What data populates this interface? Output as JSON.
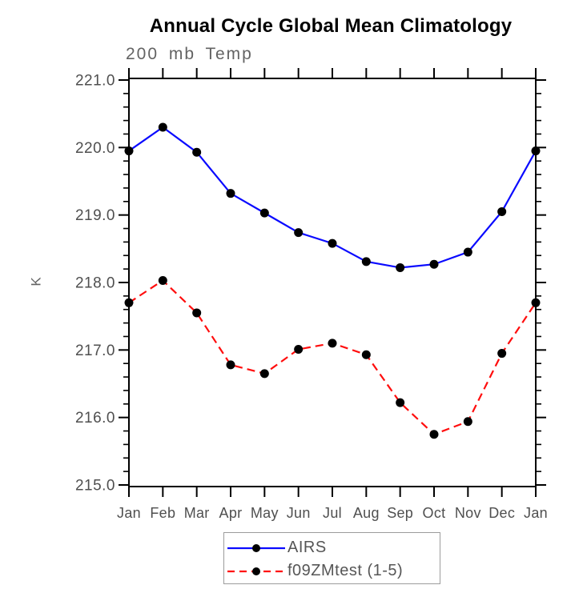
{
  "chart_data": {
    "type": "line",
    "title": "Annual Cycle Global Mean Climatology",
    "subtitle": "200 mb Temp",
    "ylabel": "K",
    "categories": [
      "Jan",
      "Feb",
      "Mar",
      "Apr",
      "May",
      "Jun",
      "Jul",
      "Aug",
      "Sep",
      "Oct",
      "Nov",
      "Dec",
      "Jan"
    ],
    "ylim": [
      215.0,
      221.0
    ],
    "yticks": [
      215.0,
      216.0,
      217.0,
      218.0,
      219.0,
      220.0,
      221.0
    ],
    "ytick_labels": [
      "215.0",
      "216.0",
      "217.0",
      "218.0",
      "219.0",
      "220.0",
      "221.0"
    ],
    "minor_tick_interval": 0.2,
    "grid": false,
    "legend_position": "bottom-center",
    "axis_color": "#000000",
    "tick_label_color": "#4f4f4f",
    "marker": "filled-circle",
    "marker_color": "#000000",
    "series": [
      {
        "name": "AIRS",
        "color": "#0a0aff",
        "style": "solid",
        "values": [
          219.95,
          220.3,
          219.93,
          219.32,
          219.03,
          218.74,
          218.58,
          218.31,
          218.22,
          218.27,
          218.45,
          219.05,
          219.95
        ]
      },
      {
        "name": "f09ZMtest (1-5)",
        "color": "#ff0d0d",
        "style": "dashed",
        "values": [
          217.7,
          218.03,
          217.55,
          216.78,
          216.65,
          217.01,
          217.1,
          216.93,
          216.22,
          215.75,
          215.94,
          216.95,
          217.7
        ]
      }
    ]
  }
}
